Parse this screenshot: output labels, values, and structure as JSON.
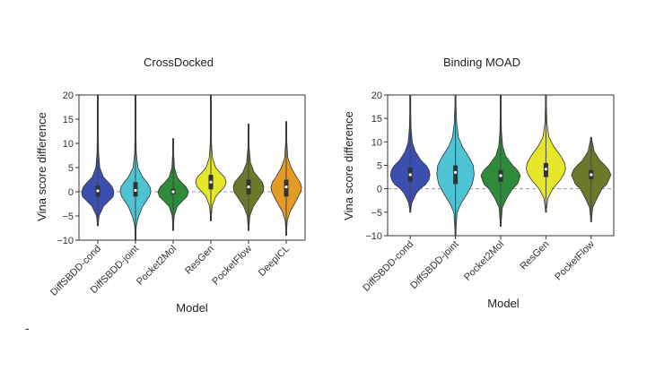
{
  "figure": {
    "stray_mark": "-"
  },
  "chart_data": [
    {
      "type": "violin",
      "title": "CrossDocked",
      "xlabel": "Model",
      "ylabel": "Vina score difference",
      "ylim": [
        -10,
        20
      ],
      "yticks": [
        -10,
        -5,
        0,
        5,
        10,
        15,
        20
      ],
      "reference_line": 0,
      "categories": [
        "DiffSBDD-cond",
        "DiffSBDD-joint",
        "Pocket2Mol",
        "ResGen",
        "PocketFlow",
        "DeepICL"
      ],
      "series": [
        {
          "category": "DiffSBDD-cond",
          "color": "#3a4fb0",
          "min": -7,
          "max": 20,
          "q1": -1,
          "median": 0.2,
          "q3": 1.3,
          "profile": [
            [
              -7,
              0.01
            ],
            [
              -5,
              0.08
            ],
            [
              -3,
              0.35
            ],
            [
              -2,
              0.65
            ],
            [
              -1,
              0.95
            ],
            [
              0,
              1.0
            ],
            [
              1,
              0.9
            ],
            [
              2,
              0.65
            ],
            [
              3,
              0.35
            ],
            [
              5,
              0.12
            ],
            [
              8,
              0.05
            ],
            [
              12,
              0.03
            ],
            [
              20,
              0.01
            ]
          ]
        },
        {
          "category": "DiffSBDD-joint",
          "color": "#4ec3d4",
          "min": -10,
          "max": 20,
          "q1": -1,
          "median": 0.3,
          "q3": 2,
          "profile": [
            [
              -10,
              0.01
            ],
            [
              -7,
              0.05
            ],
            [
              -5,
              0.2
            ],
            [
              -3,
              0.45
            ],
            [
              -1,
              0.85
            ],
            [
              0,
              0.95
            ],
            [
              1,
              0.9
            ],
            [
              2,
              0.7
            ],
            [
              3,
              0.45
            ],
            [
              5,
              0.15
            ],
            [
              8,
              0.05
            ],
            [
              12,
              0.03
            ],
            [
              20,
              0.01
            ]
          ]
        },
        {
          "category": "Pocket2Mol",
          "color": "#2e8b3a",
          "min": -8,
          "max": 11,
          "q1": -0.5,
          "median": 0,
          "q3": 0.6,
          "profile": [
            [
              -8,
              0.01
            ],
            [
              -5,
              0.06
            ],
            [
              -3,
              0.25
            ],
            [
              -2,
              0.55
            ],
            [
              -1,
              0.85
            ],
            [
              0,
              0.95
            ],
            [
              1,
              0.8
            ],
            [
              2,
              0.5
            ],
            [
              3,
              0.25
            ],
            [
              5,
              0.08
            ],
            [
              8,
              0.03
            ],
            [
              11,
              0.01
            ]
          ]
        },
        {
          "category": "ResGen",
          "color": "#e6e62a",
          "min": -6,
          "max": 20,
          "q1": 0.5,
          "median": 2,
          "q3": 3.5,
          "profile": [
            [
              -6,
              0.01
            ],
            [
              -3,
              0.08
            ],
            [
              -1,
              0.3
            ],
            [
              0,
              0.55
            ],
            [
              1,
              0.85
            ],
            [
              2,
              0.95
            ],
            [
              3,
              0.85
            ],
            [
              4,
              0.55
            ],
            [
              5,
              0.3
            ],
            [
              7,
              0.1
            ],
            [
              10,
              0.04
            ],
            [
              15,
              0.02
            ],
            [
              20,
              0.01
            ]
          ]
        },
        {
          "category": "PocketFlow",
          "color": "#6b7a2a",
          "min": -8,
          "max": 14,
          "q1": -0.5,
          "median": 1,
          "q3": 2.5,
          "profile": [
            [
              -8,
              0.01
            ],
            [
              -5,
              0.08
            ],
            [
              -3,
              0.3
            ],
            [
              -1,
              0.7
            ],
            [
              0,
              0.9
            ],
            [
              1,
              0.95
            ],
            [
              2,
              0.85
            ],
            [
              3,
              0.6
            ],
            [
              4,
              0.35
            ],
            [
              6,
              0.12
            ],
            [
              9,
              0.04
            ],
            [
              14,
              0.01
            ]
          ]
        },
        {
          "category": "DeepICL",
          "color": "#e39a26",
          "min": -9,
          "max": 14.5,
          "q1": -1,
          "median": 1,
          "q3": 2.5,
          "profile": [
            [
              -9,
              0.01
            ],
            [
              -6,
              0.06
            ],
            [
              -4,
              0.25
            ],
            [
              -2,
              0.6
            ],
            [
              0,
              0.9
            ],
            [
              1,
              0.95
            ],
            [
              2,
              0.85
            ],
            [
              3,
              0.65
            ],
            [
              5,
              0.3
            ],
            [
              7,
              0.1
            ],
            [
              10,
              0.04
            ],
            [
              14.5,
              0.01
            ]
          ]
        }
      ]
    },
    {
      "type": "violin",
      "title": "Binding MOAD",
      "xlabel": "Model",
      "ylabel": "Vina score difference",
      "ylim": [
        -10,
        20
      ],
      "yticks": [
        -10,
        -5,
        0,
        5,
        10,
        15,
        20
      ],
      "reference_line": 0,
      "categories": [
        "DiffSBDD-cond",
        "DiffSBDD-joint",
        "Pocket2Mol",
        "ResGen",
        "PocketFlow"
      ],
      "series": [
        {
          "category": "DiffSBDD-cond",
          "color": "#3a4fb0",
          "min": -5,
          "max": 20,
          "q1": 1.5,
          "median": 3,
          "q3": 4.5,
          "profile": [
            [
              -5,
              0.01
            ],
            [
              -3,
              0.08
            ],
            [
              -1,
              0.3
            ],
            [
              0,
              0.5
            ],
            [
              1,
              0.8
            ],
            [
              2,
              0.95
            ],
            [
              3,
              1.0
            ],
            [
              4,
              0.95
            ],
            [
              5,
              0.8
            ],
            [
              6,
              0.55
            ],
            [
              8,
              0.25
            ],
            [
              10,
              0.1
            ],
            [
              13,
              0.04
            ],
            [
              20,
              0.01
            ]
          ]
        },
        {
          "category": "DiffSBDD-joint",
          "color": "#4ec3d4",
          "min": -10,
          "max": 20,
          "q1": 1,
          "median": 3.5,
          "q3": 5,
          "profile": [
            [
              -10,
              0.01
            ],
            [
              -5,
              0.08
            ],
            [
              -3,
              0.3
            ],
            [
              -1,
              0.6
            ],
            [
              1,
              0.85
            ],
            [
              3,
              0.95
            ],
            [
              5,
              0.9
            ],
            [
              7,
              0.65
            ],
            [
              9,
              0.35
            ],
            [
              11,
              0.15
            ],
            [
              14,
              0.06
            ],
            [
              20,
              0.01
            ]
          ]
        },
        {
          "category": "Pocket2Mol",
          "color": "#2e8b3a",
          "min": -8,
          "max": 20,
          "q1": 1.5,
          "median": 2.8,
          "q3": 4,
          "profile": [
            [
              -8,
              0.01
            ],
            [
              -4,
              0.08
            ],
            [
              -2,
              0.3
            ],
            [
              0,
              0.6
            ],
            [
              1,
              0.85
            ],
            [
              2.8,
              1.0
            ],
            [
              4,
              0.85
            ],
            [
              5,
              0.6
            ],
            [
              7,
              0.25
            ],
            [
              9,
              0.1
            ],
            [
              12,
              0.04
            ],
            [
              20,
              0.01
            ]
          ]
        },
        {
          "category": "ResGen",
          "color": "#e6e62a",
          "min": -5,
          "max": 20,
          "q1": 2.5,
          "median": 4.2,
          "q3": 5.5,
          "profile": [
            [
              -5,
              0.01
            ],
            [
              -2,
              0.1
            ],
            [
              0,
              0.35
            ],
            [
              2,
              0.75
            ],
            [
              3,
              0.9
            ],
            [
              4.2,
              1.0
            ],
            [
              5.5,
              0.95
            ],
            [
              7,
              0.75
            ],
            [
              9,
              0.4
            ],
            [
              11,
              0.15
            ],
            [
              14,
              0.05
            ],
            [
              20,
              0.01
            ]
          ]
        },
        {
          "category": "PocketFlow",
          "color": "#6b7a2a",
          "min": -7,
          "max": 11,
          "q1": 2,
          "median": 3,
          "q3": 4,
          "profile": [
            [
              -7,
              0.01
            ],
            [
              -4,
              0.08
            ],
            [
              -2,
              0.3
            ],
            [
              0,
              0.55
            ],
            [
              1,
              0.8
            ],
            [
              3,
              1.0
            ],
            [
              4,
              0.9
            ],
            [
              5,
              0.7
            ],
            [
              6,
              0.45
            ],
            [
              8,
              0.15
            ],
            [
              11,
              0.01
            ]
          ]
        }
      ]
    }
  ]
}
